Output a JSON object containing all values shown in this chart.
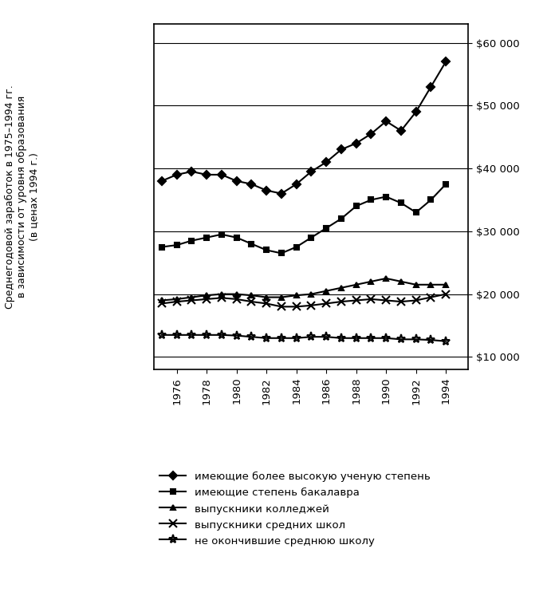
{
  "years": [
    1975,
    1976,
    1977,
    1978,
    1979,
    1980,
    1981,
    1982,
    1983,
    1984,
    1985,
    1986,
    1987,
    1988,
    1989,
    1990,
    1991,
    1992,
    1993,
    1994
  ],
  "series": {
    "advanced_degree": [
      38000,
      39000,
      39500,
      39000,
      39000,
      38000,
      37500,
      36500,
      36000,
      37500,
      39500,
      41000,
      43000,
      44000,
      45500,
      47500,
      46000,
      49000,
      53000,
      57000
    ],
    "bachelors": [
      27500,
      27800,
      28500,
      29000,
      29500,
      29000,
      28000,
      27000,
      26500,
      27500,
      29000,
      30500,
      32000,
      34000,
      35000,
      35500,
      34500,
      33000,
      35000,
      37500
    ],
    "college_grad": [
      19000,
      19200,
      19500,
      19800,
      20000,
      20000,
      19800,
      19500,
      19500,
      19800,
      20000,
      20500,
      21000,
      21500,
      22000,
      22500,
      22000,
      21500,
      21500,
      21500
    ],
    "high_school_grad": [
      18500,
      18800,
      19000,
      19200,
      19400,
      19200,
      18800,
      18500,
      18000,
      18000,
      18200,
      18500,
      18800,
      19000,
      19200,
      19000,
      18800,
      19000,
      19500,
      20000
    ],
    "no_high_school": [
      13500,
      13500,
      13500,
      13500,
      13500,
      13400,
      13200,
      13000,
      13000,
      13000,
      13200,
      13200,
      13000,
      13000,
      13000,
      13000,
      12800,
      12800,
      12700,
      12500
    ]
  },
  "ylabel_lines": [
    "Среднегодовой заработок в 1975–1994 гг.",
    "в зависимости от уровня образования",
    "(в ценах 1994 г.)"
  ],
  "yticks": [
    10000,
    20000,
    30000,
    40000,
    50000,
    60000
  ],
  "ytick_labels": [
    "$10 000",
    "$20 000",
    "$30 000",
    "$40 000",
    "$50 000",
    "$60 000"
  ],
  "xticks": [
    1976,
    1978,
    1980,
    1982,
    1984,
    1986,
    1988,
    1990,
    1992,
    1994
  ],
  "ylim": [
    8000,
    63000
  ],
  "xlim": [
    1974.5,
    1995.5
  ],
  "legend_labels": [
    "имеющие более высокую ученую степень",
    "имеющие степень бакалавра",
    "выпускники колледжей",
    "выпускники средних школ",
    "не окончившие среднюю школу"
  ],
  "line_color": "#000000",
  "bg_color": "#ffffff"
}
